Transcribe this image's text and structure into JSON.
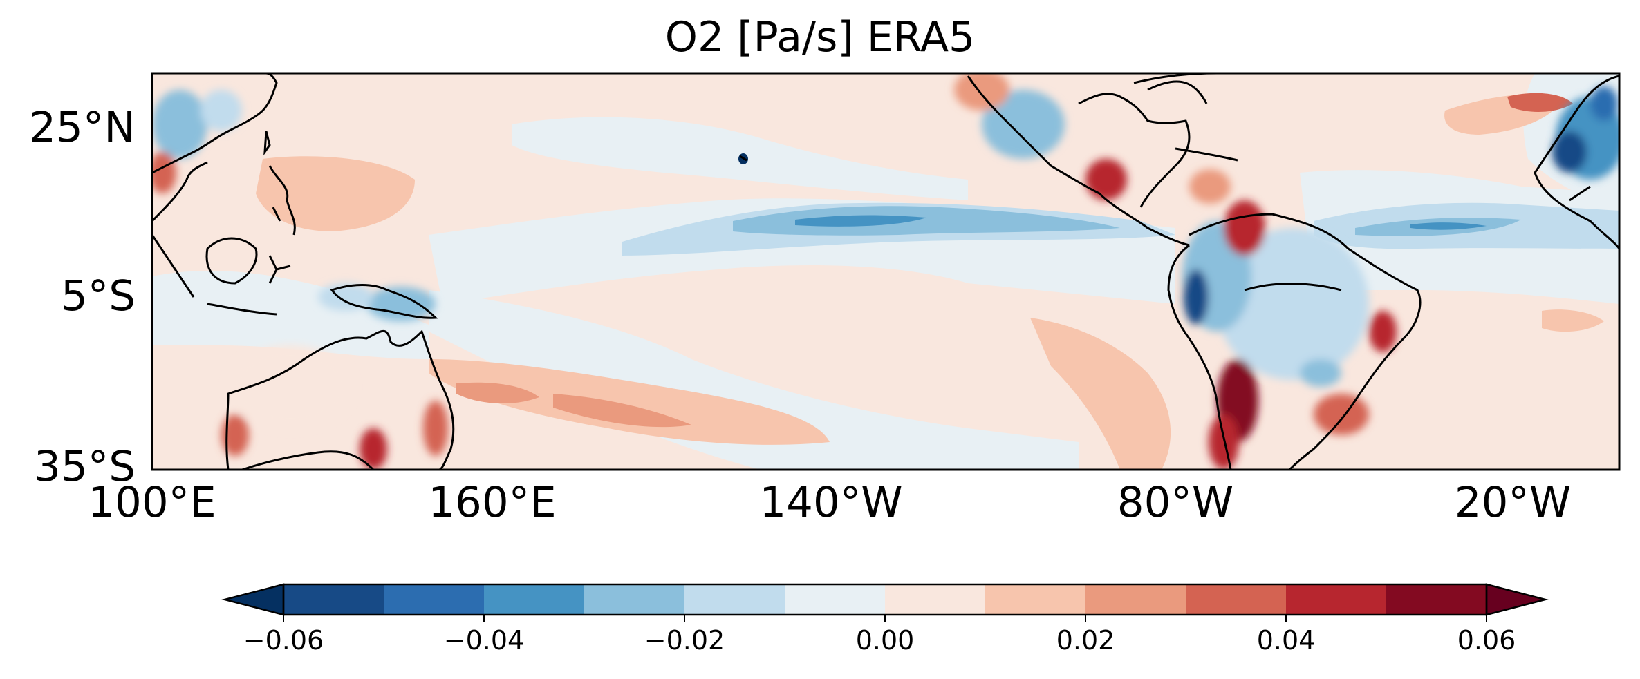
{
  "title": "O2 [Pa/s] ERA5",
  "map": {
    "projection": "PlateCarree",
    "lon_range": [
      "100°E",
      "20°W"
    ],
    "lat_range": [
      "35°S",
      "35°N"
    ],
    "lat_ticks": [
      "25°N",
      "5°S",
      "35°S"
    ],
    "lon_ticks": [
      "100°E",
      "160°E",
      "140°W",
      "80°W",
      "20°W"
    ],
    "coastline_color": "#000000",
    "field_description": "vertical velocity (omega) anomaly field; blue = negative, red = positive"
  },
  "colorbar": {
    "orientation": "horizontal",
    "extend": "both",
    "levels": [
      -0.06,
      -0.05,
      -0.04,
      -0.03,
      -0.02,
      -0.01,
      0.0,
      0.01,
      0.02,
      0.03,
      0.04,
      0.05,
      0.06
    ],
    "tick_labels": [
      "−0.06",
      "−0.04",
      "−0.02",
      "0.00",
      "0.02",
      "0.04",
      "0.06"
    ],
    "colors": [
      "#053061",
      "#174a86",
      "#2c6db0",
      "#4593c3",
      "#8bbfdc",
      "#c1dced",
      "#e8f0f4",
      "#f9e7de",
      "#f7c5ad",
      "#ea9a7e",
      "#d46352",
      "#b7262f",
      "#830a21",
      "#67001f"
    ]
  }
}
